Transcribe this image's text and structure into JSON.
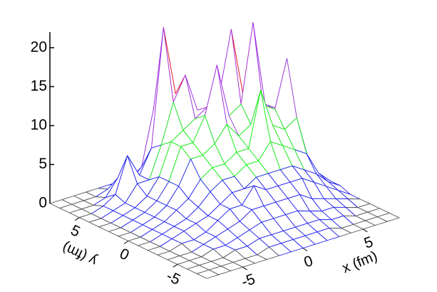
{
  "chart_data": {
    "type": "surface",
    "xlabel": "x (fm)",
    "ylabel": "y (fm)",
    "x": [
      -8,
      -7,
      -6,
      -5,
      -4,
      -3,
      -2,
      -1,
      0,
      1,
      2,
      3,
      4,
      5,
      6,
      7,
      8
    ],
    "y": [
      8,
      7,
      6,
      5,
      4,
      3,
      2,
      1,
      0,
      -1,
      -2,
      -3,
      -4,
      -5,
      -6,
      -7,
      -8
    ],
    "z": [
      [
        0,
        0,
        0,
        0,
        0,
        0,
        0,
        0,
        0,
        0,
        0,
        0,
        0,
        0,
        0,
        0,
        0
      ],
      [
        0,
        0,
        0,
        0,
        0.5,
        0.5,
        1,
        1.5,
        1.5,
        1,
        1,
        0.5,
        0.5,
        0,
        0,
        0,
        0
      ],
      [
        0,
        0,
        0,
        0.5,
        2.5,
        1.5,
        3,
        10,
        6,
        4,
        3,
        3,
        2,
        1,
        0.5,
        0,
        0
      ],
      [
        0,
        0,
        0.5,
        1.5,
        6,
        3,
        6,
        21,
        12,
        8,
        7,
        7,
        6,
        3,
        1,
        0.5,
        0
      ],
      [
        0,
        0,
        0.5,
        1,
        3,
        3,
        7,
        12,
        15,
        10,
        9,
        11,
        8,
        6,
        2,
        0.5,
        0
      ],
      [
        0,
        0,
        0.5,
        1,
        2,
        4,
        8,
        9,
        10,
        11,
        12,
        20,
        11,
        8,
        6,
        1,
        0
      ],
      [
        0,
        0,
        0.5,
        1,
        2,
        4,
        8,
        8,
        11,
        17,
        10,
        11,
        21,
        10,
        9,
        3,
        0.5
      ],
      [
        0,
        0,
        0.5,
        1,
        2,
        4,
        7,
        7,
        8,
        10,
        8,
        9,
        11,
        10,
        16,
        4,
        0.5
      ],
      [
        0,
        0,
        0.5,
        1,
        2,
        3,
        5,
        6,
        6,
        7,
        7,
        14,
        9,
        8,
        9,
        3,
        0.5
      ],
      [
        0,
        0,
        0.5,
        1,
        1.5,
        2.5,
        4,
        5,
        5,
        6,
        6,
        8,
        7,
        6,
        5,
        2,
        0.5
      ],
      [
        0,
        0,
        0.5,
        1,
        1.5,
        2,
        3,
        4,
        4,
        5,
        5,
        5,
        5,
        4,
        3,
        1.5,
        0.5
      ],
      [
        0,
        0,
        0.5,
        0.5,
        1,
        2,
        3,
        3,
        5,
        4,
        4,
        4,
        4,
        3,
        2,
        1,
        0
      ],
      [
        0,
        0,
        0,
        0.5,
        1,
        1.5,
        2,
        3,
        3,
        3,
        3,
        3,
        2,
        1.5,
        1,
        0.5,
        0
      ],
      [
        0,
        0,
        0,
        0.5,
        0.5,
        1,
        1.5,
        2,
        2,
        2,
        2,
        1.5,
        1,
        1,
        0.5,
        0,
        0
      ],
      [
        0,
        0,
        0,
        0,
        0.5,
        0.5,
        1,
        1,
        1,
        1,
        1,
        1,
        0.5,
        0.5,
        0,
        0,
        0
      ],
      [
        0,
        0,
        0,
        0,
        0,
        0,
        0.5,
        0.5,
        0.5,
        0.5,
        0.5,
        0.5,
        0,
        0,
        0,
        0,
        0
      ],
      [
        0,
        0,
        0,
        0,
        0,
        0,
        0,
        0,
        0,
        0,
        0,
        0,
        0,
        0,
        0,
        0,
        0
      ]
    ],
    "xlim": [
      -8,
      8
    ],
    "ylim": [
      -8,
      8
    ],
    "zlim": [
      0,
      22
    ],
    "xticks": [
      -5,
      0,
      5
    ],
    "yticks": [
      5,
      0,
      -5
    ],
    "zticks": [
      0,
      5,
      10,
      15,
      20
    ],
    "color_bounds": [
      0.25,
      5,
      10,
      15
    ],
    "colors": [
      "#555555",
      "#2222ee",
      "#11ee11",
      "#a030e0",
      "#ee1111"
    ]
  }
}
